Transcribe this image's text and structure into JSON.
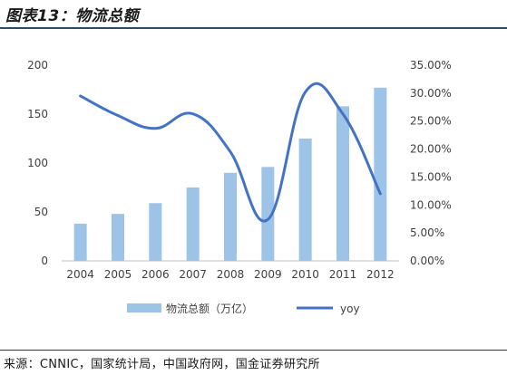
{
  "figure_title": "图表13：物流总额",
  "source_text": "来源：CNNIC，国家统计局，中国政府网，国金证券研究所",
  "chart_data": {
    "type": "bar",
    "categories": [
      "2004",
      "2005",
      "2006",
      "2007",
      "2008",
      "2009",
      "2010",
      "2011",
      "2012"
    ],
    "series": [
      {
        "name": "物流总额（万亿）",
        "type": "bar",
        "axis": "left",
        "color": "#9dc3e6",
        "values": [
          38,
          48,
          59,
          75,
          90,
          96,
          125,
          158,
          177
        ]
      },
      {
        "name": "yoy",
        "type": "line",
        "axis": "right",
        "color": "#4472c4",
        "values": [
          29.5,
          26.0,
          23.7,
          26.3,
          19.5,
          7.4,
          30.2,
          26.3,
          12.0
        ]
      }
    ],
    "y_left": {
      "min": 0,
      "max": 200,
      "ticks": [
        "0",
        "50",
        "100",
        "150",
        "200"
      ]
    },
    "y_right": {
      "min": 0,
      "max": 35,
      "ticks": [
        "0.00%",
        "5.00%",
        "10.00%",
        "15.00%",
        "20.00%",
        "25.00%",
        "30.00%",
        "35.00%"
      ]
    },
    "grid": false,
    "legend_position": "bottom"
  }
}
